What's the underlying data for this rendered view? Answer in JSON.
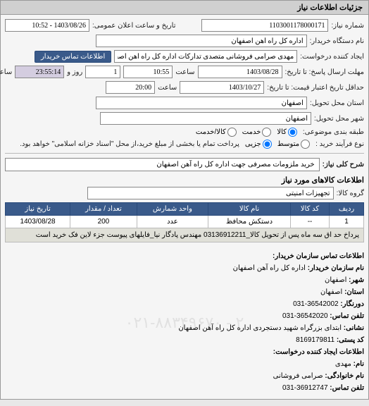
{
  "panel_title": "جزئیات اطلاعات نیاز",
  "fields": {
    "need_number_label": "شماره نیاز:",
    "need_number": "1103001178000171",
    "announce_datetime_label": "تاریخ و ساعت اعلان عمومی:",
    "announce_datetime": "1403/08/26 - 10:52",
    "buyer_org_label": "نام دستگاه خریدار:",
    "buyer_org": "اداره کل راه آهن اصفهان",
    "requester_label": "ایجاد کننده درخواست:",
    "requester": "مهدی صرامی فروشانی متصدی تدارکات اداره کل راه آهن اصفهان",
    "buyer_contact_btn": "اطلاعات تماس خریدار",
    "deadline_label": "مهلت ارسال پاسخ: تا تاریخ:",
    "deadline_date": "1403/08/28",
    "deadline_time_label": "ساعت",
    "deadline_time": "10:55",
    "remaining_days": "1",
    "remaining_days_label": "روز و",
    "remaining_time": "23:55:14",
    "remaining_suffix": "ساعت باقی مانده",
    "validity_label": "حداقل تاریخ اعتبار قیمت: تا تاریخ:",
    "validity_date": "1403/10/27",
    "validity_time_label": "ساعت",
    "validity_time": "20:00",
    "delivery_province_label": "استان محل تحویل:",
    "delivery_province": "اصفهان",
    "delivery_city_label": "شهر محل تحویل:",
    "delivery_city": "اصفهان",
    "subject_type_label": "طبقه بندی موضوعی:",
    "subject_kala": "کالا",
    "subject_khadamat": "خدمت",
    "subject_both": "کالا/خدمت",
    "purchase_type_label": "نوع فرآیند خرید :",
    "purchase_medium": "متوسط",
    "purchase_partial": "جزیی",
    "purchase_note": "پرداخت تمام یا بخشی از مبلغ خرید،از محل \"اسناد خزانه اسلامی\" خواهد بود.",
    "need_desc_label": "شرح کلی نیاز:",
    "need_desc": "خرید ملزومات مصرفی جهت اداره کل راه آهن اصفهان",
    "goods_info_title": "اطلاعات کالاهای مورد نیاز",
    "goods_group_label": "گروه کالا:",
    "goods_group": "تجهیزات امنیتی"
  },
  "table": {
    "headers": [
      "ردیف",
      "کد کالا",
      "نام کالا",
      "واحد شمارش",
      "تعداد / مقدار",
      "تاریخ نیاز"
    ],
    "rows": [
      [
        "1",
        "--",
        "دستکش محافظ",
        "عدد",
        "200",
        "1403/08/28"
      ]
    ],
    "note": "پرداخ حد اق سه ماه پس از تحویل کالا_03136912211 مهندس پادگار نیا_فایلهای پیوست جزء لاین فک خرید است"
  },
  "contact": {
    "title1": "اطلاعات تماس سازمان خریدار:",
    "org_label": "نام سازمان خریدار:",
    "org": "اداره کل راه آهن اصفهان",
    "province_label": "شهر:",
    "province": "اصفهان",
    "city_label": "استان:",
    "city": "اصفهان",
    "fax_label": "دورنگار:",
    "fax": "36542002-031",
    "phone_label": "تلفن تماس:",
    "phone": "36542020-031",
    "address_label": "نشانی:",
    "address": "ابتدای بزرگراه شهید دستجردی اداره کل راه آهن اصفهان",
    "postcode_label": "کد پستی:",
    "postcode": "8169179811",
    "title2": "اطلاعات ایجاد کننده درخواست:",
    "name_label": "نام:",
    "name": "مهدی",
    "family_label": "نام خانوادگی:",
    "family": "صرامی فروشانی",
    "phone2_label": "تلفن تماس:",
    "phone2": "36912747-031"
  },
  "watermark": "۰۲۱-۸۸۳۴۹۶۷۰ - ۲"
}
